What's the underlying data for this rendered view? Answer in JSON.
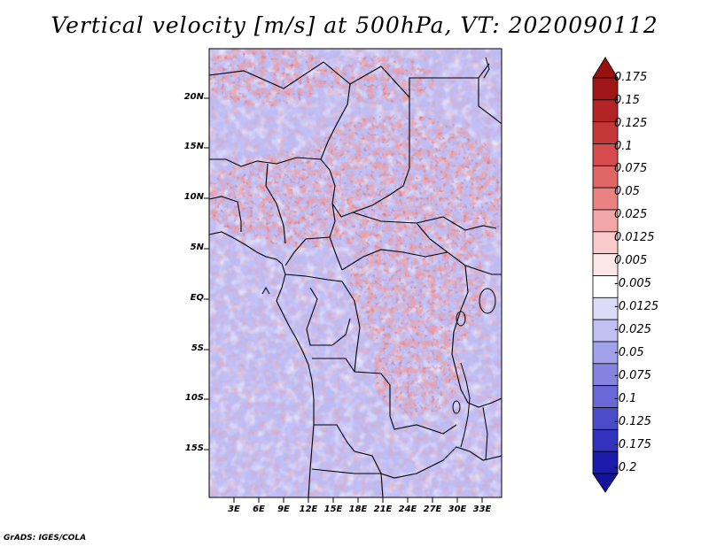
{
  "title": "Vertical velocity [m/s] at 500hPa, VT: 2020090112",
  "footer": "GrADS: IGES/COLA",
  "map": {
    "lat_labels": [
      "20N",
      "15N",
      "10N",
      "5N",
      "EQ",
      "5S",
      "10S",
      "15S"
    ],
    "lon_labels": [
      "3E",
      "6E",
      "9E",
      "12E",
      "15E",
      "18E",
      "21E",
      "24E",
      "27E",
      "30E",
      "33E"
    ]
  },
  "colorbar": {
    "labels": [
      "0.175",
      "0.15",
      "0.125",
      "0.1",
      "0.075",
      "0.05",
      "0.025",
      "0.0125",
      "0.005",
      "-0.005",
      "-0.0125",
      "-0.025",
      "-0.05",
      "-0.075",
      "-0.1",
      "-0.125",
      "-0.175",
      "-0.2"
    ],
    "colors": [
      "#a01616",
      "#b52424",
      "#c63838",
      "#d64b4b",
      "#e06565",
      "#ea8282",
      "#f2a6a6",
      "#f8caca",
      "#fde6e6",
      "#ffffff",
      "#dcdcf8",
      "#c0c0f2",
      "#a2a2ea",
      "#8484e0",
      "#6868d6",
      "#4c4ccb",
      "#3232be",
      "#1c1cac"
    ]
  }
}
